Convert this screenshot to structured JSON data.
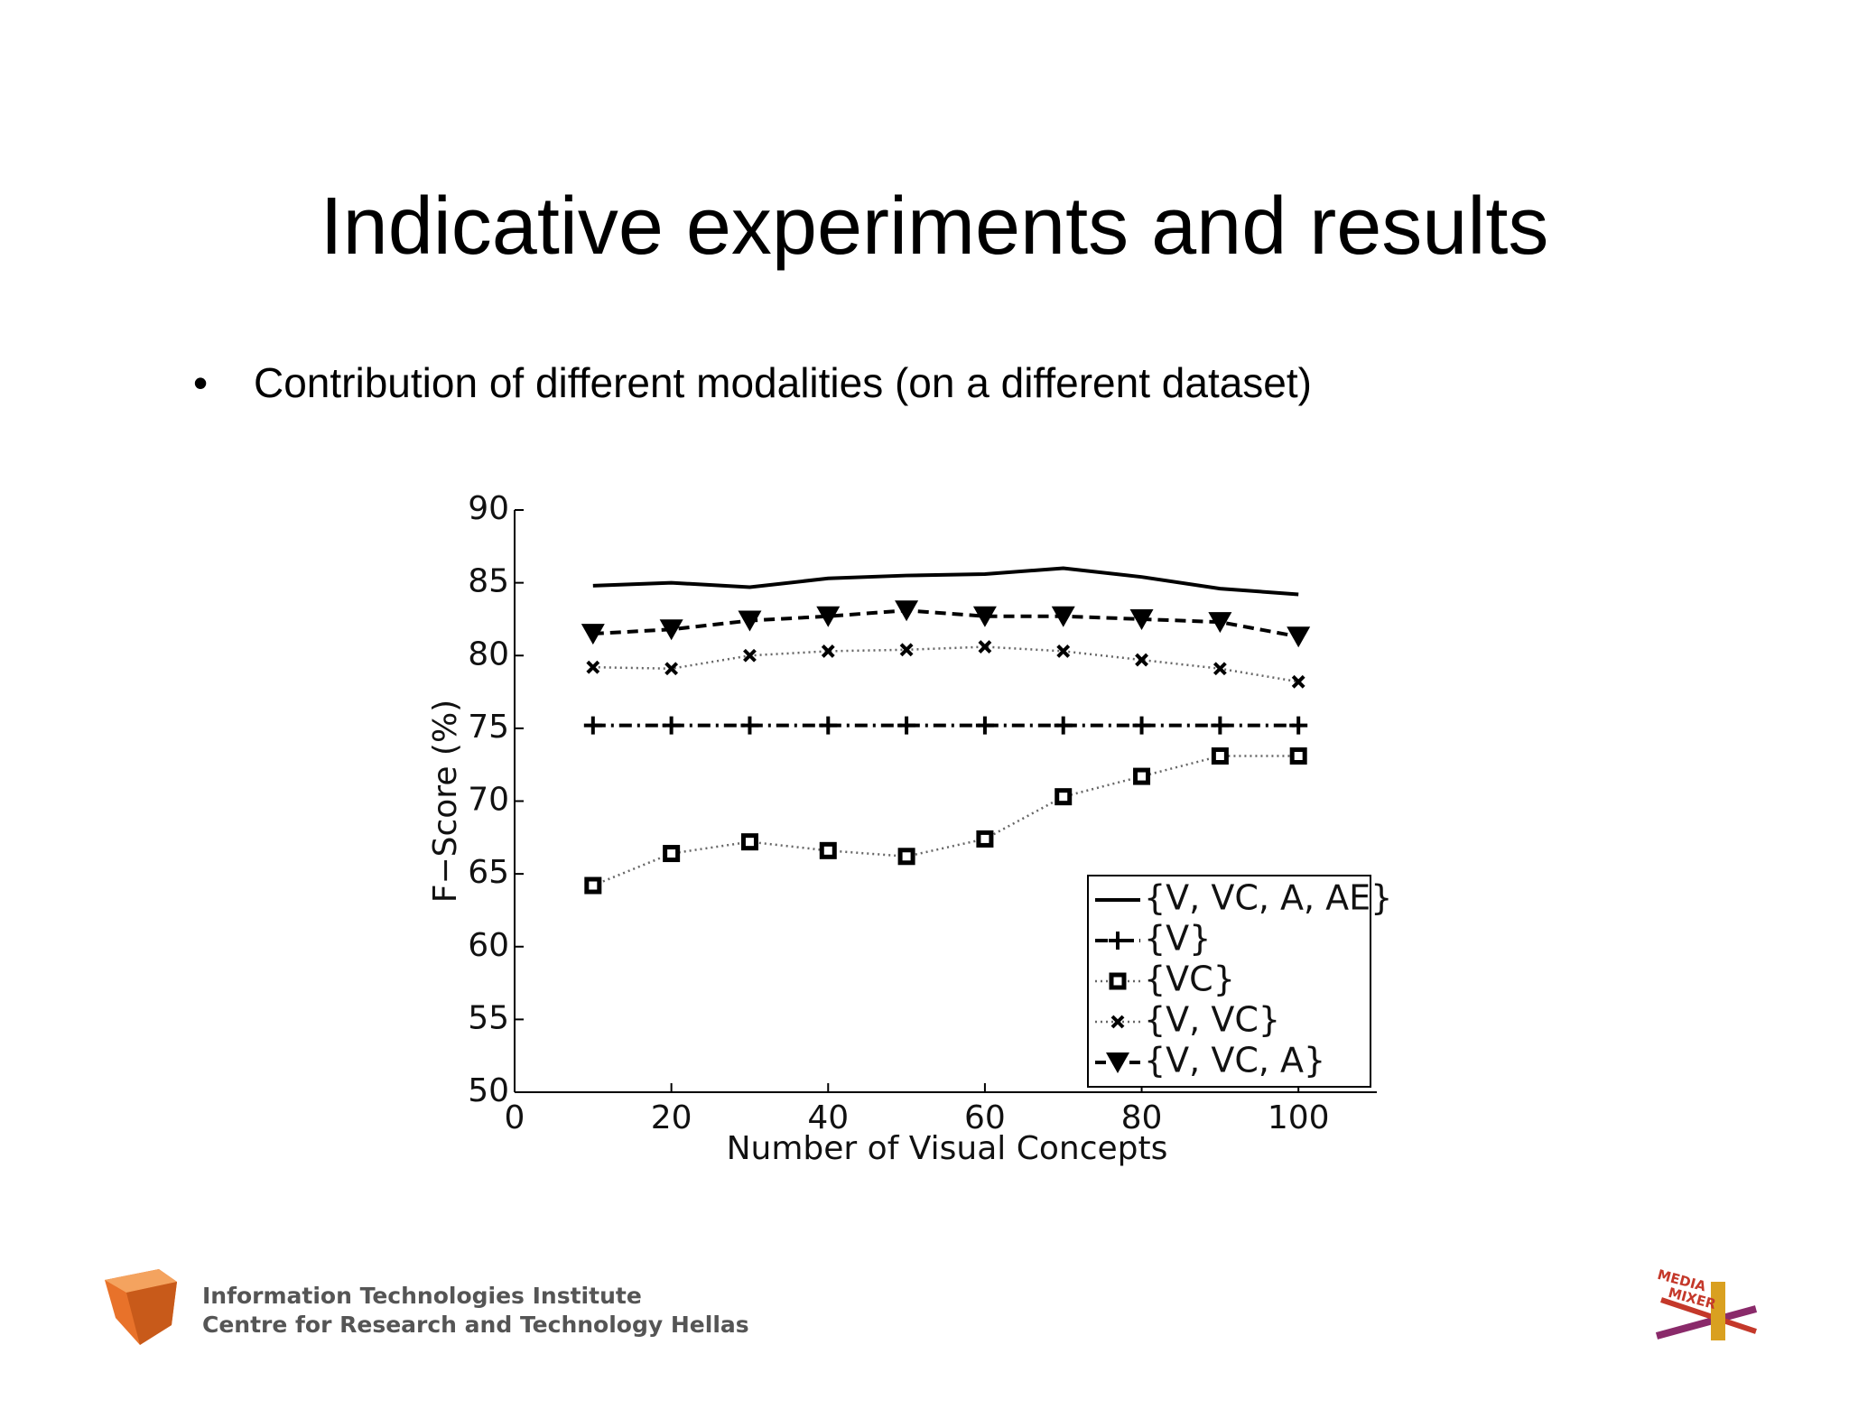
{
  "slide": {
    "title": "Indicative experiments and results",
    "bullet": "Contribution of different modalities (on a different dataset)",
    "bullet_marker": "•",
    "footer": [
      "Information Technologies Institute",
      "Centre for Research and Technology Hellas"
    ],
    "logo_text": [
      "MEDIA",
      "MIXER"
    ]
  },
  "chart_data": {
    "type": "line",
    "x_label": "Number of Visual Concepts",
    "y_label": "F−Score (%)",
    "x": [
      10,
      20,
      30,
      40,
      50,
      60,
      70,
      80,
      90,
      100
    ],
    "series": [
      {
        "name": "{V, VC, A, AE}",
        "color": "#000000",
        "dash": "solid",
        "marker": "none",
        "values": [
          84.8,
          85.0,
          84.7,
          85.3,
          85.5,
          85.6,
          86.0,
          85.4,
          84.6,
          84.2
        ]
      },
      {
        "name": "{V}",
        "color": "#000000",
        "dash": "dashdot",
        "marker": "plus",
        "values": [
          75.2,
          75.2,
          75.2,
          75.2,
          75.2,
          75.2,
          75.2,
          75.2,
          75.2,
          75.2
        ]
      },
      {
        "name": "{VC}",
        "color": "#000000",
        "dash": "dotted",
        "marker": "square",
        "values": [
          64.2,
          66.4,
          67.2,
          66.6,
          66.2,
          67.4,
          70.3,
          71.7,
          73.1,
          73.1
        ]
      },
      {
        "name": "{V, VC}",
        "color": "#000000",
        "dash": "dotted",
        "marker": "x",
        "values": [
          79.2,
          79.1,
          80.0,
          80.3,
          80.4,
          80.6,
          80.3,
          79.7,
          79.1,
          78.2
        ]
      },
      {
        "name": "{V, VC, A}",
        "color": "#000000",
        "dash": "dashed",
        "marker": "triangle",
        "values": [
          81.5,
          81.8,
          82.4,
          82.7,
          83.1,
          82.7,
          82.7,
          82.5,
          82.3,
          81.3
        ]
      }
    ],
    "xlim": [
      0,
      110
    ],
    "xticks": [
      0,
      20,
      40,
      60,
      80,
      100
    ],
    "ylim": [
      50,
      90
    ],
    "yticks": [
      50,
      55,
      60,
      65,
      70,
      75,
      80,
      85,
      90
    ],
    "grid": false,
    "legend": "lower right"
  }
}
